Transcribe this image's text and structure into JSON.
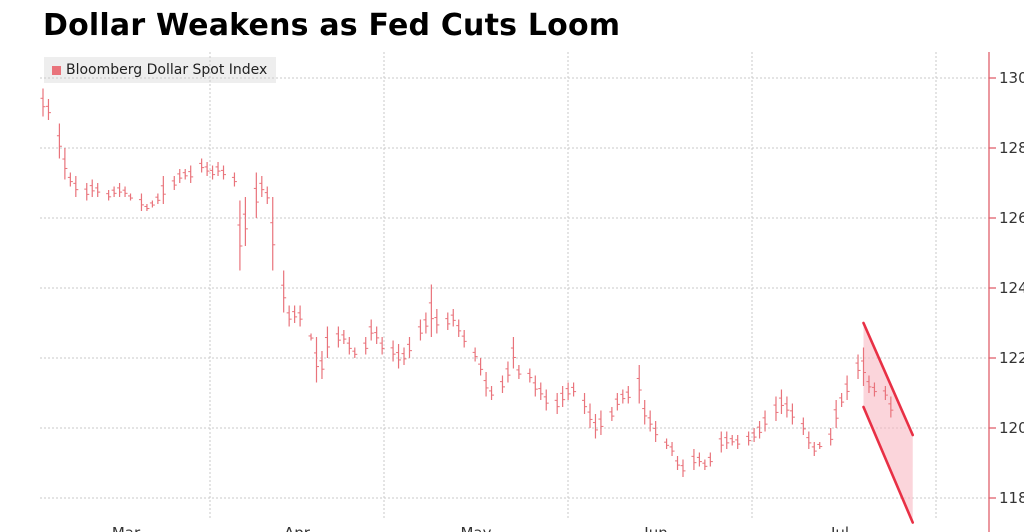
{
  "colors": {
    "series": "#e9737b",
    "accent": "#e83045",
    "wedge_fill": "#f7b3bd",
    "grid": "#c9c9c9",
    "axis": "#e0606c"
  },
  "chart_data": {
    "type": "ohlc",
    "title": "Dollar Weakens as Fed Cuts Loom",
    "legend": {
      "label": "Bloomberg Dollar Spot Index",
      "position": "top-left"
    },
    "ylim": [
      117.8,
      131.0
    ],
    "y_axis_side": "right",
    "yticks": [
      "118",
      "120",
      "122",
      "124",
      "126",
      "128",
      "130"
    ],
    "xtick_labels": [
      "Mar",
      "Apr",
      "May",
      "Jun",
      "Jul"
    ],
    "grid": true,
    "series": [
      {
        "bars": [
          [
            0,
            129.7,
            128.9
          ],
          [
            1,
            129.4,
            128.8
          ],
          [
            3,
            128.7,
            127.7
          ],
          [
            4,
            128.0,
            127.1
          ],
          [
            5,
            127.3,
            126.9
          ],
          [
            6,
            127.2,
            126.6
          ],
          [
            8,
            127.0,
            126.5
          ],
          [
            9,
            127.1,
            126.6
          ],
          [
            10,
            127.0,
            126.6
          ],
          [
            12,
            126.8,
            126.5
          ],
          [
            13,
            126.9,
            126.6
          ],
          [
            14,
            127.0,
            126.6
          ],
          [
            15,
            126.9,
            126.6
          ],
          [
            16,
            126.7,
            126.5
          ],
          [
            18,
            126.7,
            126.2
          ],
          [
            19,
            126.4,
            126.2
          ],
          [
            20,
            126.5,
            126.3
          ],
          [
            21,
            126.7,
            126.4
          ],
          [
            22,
            127.2,
            126.4
          ],
          [
            24,
            127.2,
            126.8
          ],
          [
            25,
            127.4,
            127.0
          ],
          [
            26,
            127.4,
            127.1
          ],
          [
            27,
            127.5,
            127.0
          ],
          [
            29,
            127.7,
            127.3
          ],
          [
            30,
            127.6,
            127.2
          ],
          [
            31,
            127.5,
            127.1
          ],
          [
            32,
            127.6,
            127.2
          ],
          [
            33,
            127.5,
            127.1
          ],
          [
            35,
            127.3,
            126.9
          ],
          [
            36,
            126.5,
            124.5
          ],
          [
            37,
            126.6,
            125.2
          ],
          [
            39,
            127.3,
            126.0
          ],
          [
            40,
            127.2,
            126.6
          ],
          [
            41,
            126.9,
            126.4
          ],
          [
            42,
            126.6,
            124.5
          ],
          [
            44,
            124.5,
            123.3
          ],
          [
            45,
            123.5,
            122.9
          ],
          [
            46,
            123.5,
            123.0
          ],
          [
            47,
            123.5,
            122.9
          ],
          [
            49,
            122.7,
            122.5
          ],
          [
            50,
            122.6,
            121.3
          ],
          [
            51,
            122.2,
            121.4
          ],
          [
            52,
            122.9,
            122.0
          ],
          [
            54,
            122.9,
            122.3
          ],
          [
            55,
            122.8,
            122.4
          ],
          [
            56,
            122.6,
            122.1
          ],
          [
            57,
            122.3,
            122.0
          ],
          [
            59,
            122.6,
            122.1
          ],
          [
            60,
            123.1,
            122.5
          ],
          [
            61,
            122.9,
            122.4
          ],
          [
            62,
            122.6,
            122.1
          ],
          [
            64,
            122.5,
            121.9
          ],
          [
            65,
            122.4,
            121.7
          ],
          [
            66,
            122.3,
            121.8
          ],
          [
            67,
            122.6,
            122.0
          ],
          [
            69,
            123.1,
            122.5
          ],
          [
            70,
            123.3,
            122.7
          ],
          [
            71,
            124.1,
            122.6
          ],
          [
            72,
            123.4,
            122.7
          ],
          [
            74,
            123.3,
            122.8
          ],
          [
            75,
            123.4,
            122.9
          ],
          [
            76,
            123.1,
            122.6
          ],
          [
            77,
            122.8,
            122.3
          ],
          [
            79,
            122.3,
            121.9
          ],
          [
            80,
            122.0,
            121.5
          ],
          [
            81,
            121.6,
            120.9
          ],
          [
            82,
            121.2,
            120.8
          ],
          [
            84,
            121.5,
            121.0
          ],
          [
            85,
            121.9,
            121.3
          ],
          [
            86,
            122.6,
            121.7
          ],
          [
            87,
            121.8,
            121.4
          ],
          [
            89,
            121.7,
            121.3
          ],
          [
            90,
            121.5,
            120.9
          ],
          [
            91,
            121.3,
            120.8
          ],
          [
            92,
            121.1,
            120.5
          ],
          [
            94,
            121.0,
            120.4
          ],
          [
            95,
            121.2,
            120.6
          ],
          [
            96,
            121.3,
            120.8
          ],
          [
            97,
            121.3,
            120.9
          ],
          [
            99,
            121.0,
            120.4
          ],
          [
            100,
            120.7,
            120.0
          ],
          [
            101,
            120.4,
            119.7
          ],
          [
            102,
            120.5,
            119.8
          ],
          [
            104,
            120.6,
            120.2
          ],
          [
            105,
            121.0,
            120.5
          ],
          [
            106,
            121.1,
            120.7
          ],
          [
            107,
            121.2,
            120.7
          ],
          [
            109,
            121.8,
            120.7
          ],
          [
            110,
            120.8,
            120.1
          ],
          [
            111,
            120.5,
            119.9
          ],
          [
            112,
            120.2,
            119.6
          ],
          [
            114,
            119.7,
            119.4
          ],
          [
            115,
            119.6,
            119.2
          ],
          [
            116,
            119.2,
            118.8
          ],
          [
            117,
            119.1,
            118.6
          ],
          [
            119,
            119.4,
            118.8
          ],
          [
            120,
            119.3,
            118.9
          ],
          [
            121,
            119.1,
            118.8
          ],
          [
            122,
            119.3,
            118.9
          ],
          [
            124,
            119.9,
            119.3
          ],
          [
            125,
            119.9,
            119.4
          ],
          [
            126,
            119.8,
            119.5
          ],
          [
            127,
            119.8,
            119.4
          ],
          [
            129,
            119.9,
            119.5
          ],
          [
            130,
            120.0,
            119.6
          ],
          [
            131,
            120.2,
            119.7
          ],
          [
            132,
            120.5,
            119.9
          ],
          [
            134,
            120.9,
            120.2
          ],
          [
            135,
            121.1,
            120.4
          ],
          [
            136,
            120.9,
            120.3
          ],
          [
            137,
            120.7,
            120.1
          ],
          [
            139,
            120.3,
            119.8
          ],
          [
            140,
            119.9,
            119.4
          ],
          [
            141,
            119.6,
            119.2
          ],
          [
            142,
            119.6,
            119.4
          ],
          [
            144,
            120.0,
            119.5
          ],
          [
            145,
            120.8,
            120.0
          ],
          [
            146,
            121.0,
            120.6
          ],
          [
            147,
            121.5,
            120.8
          ],
          [
            149,
            122.1,
            121.4
          ],
          [
            150,
            122.3,
            121.2
          ],
          [
            151,
            121.5,
            121.0
          ],
          [
            152,
            121.3,
            120.9
          ],
          [
            154,
            121.2,
            120.8
          ],
          [
            155,
            120.9,
            120.3
          ]
        ]
      }
    ],
    "annotation": {
      "type": "falling wedge",
      "upper_line": {
        "from": [
          150,
          123.0
        ],
        "to": [
          159,
          119.8
        ]
      },
      "lower_line": {
        "from": [
          150,
          120.6
        ],
        "to": [
          159,
          117.3
        ]
      }
    }
  }
}
